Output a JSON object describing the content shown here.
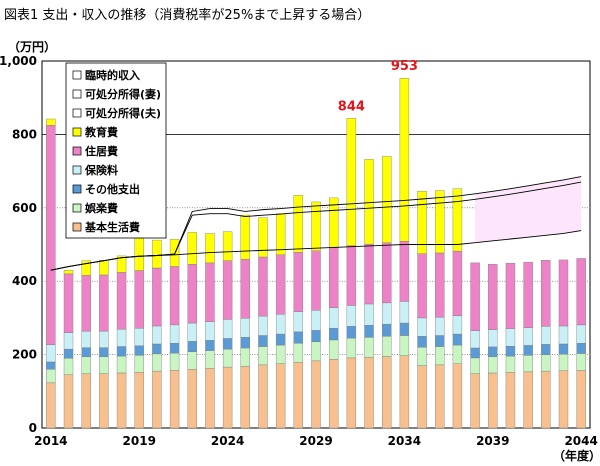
{
  "title": "図表1 支出・収入の推移（消費税率が25%まで上昇する場合）",
  "chart_data": {
    "type": "bar",
    "stacked": true,
    "ylabel": "（万円）",
    "xlabel": "（年度）",
    "ylim": [
      0,
      1000
    ],
    "yticks": [
      "0",
      "200",
      "400",
      "600",
      "800",
      "1,000"
    ],
    "ytick_values": [
      0,
      200,
      400,
      600,
      800,
      1000
    ],
    "years": [
      2014,
      2015,
      2016,
      2017,
      2018,
      2019,
      2020,
      2021,
      2022,
      2023,
      2024,
      2025,
      2026,
      2027,
      2028,
      2029,
      2030,
      2031,
      2032,
      2033,
      2034,
      2035,
      2036,
      2037,
      2038,
      2039,
      2040,
      2041,
      2042,
      2043,
      2044
    ],
    "xtick_labels": [
      "2014",
      "2019",
      "2024",
      "2029",
      "2034",
      "2039",
      "2044"
    ],
    "xtick_years": [
      2014,
      2019,
      2024,
      2029,
      2034,
      2039,
      2044
    ],
    "legend": [
      {
        "key": "rinji",
        "label": "臨時的収入",
        "color": "#ffffff",
        "kind": "line"
      },
      {
        "key": "disp_wife",
        "label": "可処分所得(妻)",
        "color": "#ffffff",
        "kind": "line"
      },
      {
        "key": "disp_husband",
        "label": "可処分所得(夫)",
        "color": "#ffffff",
        "kind": "line"
      },
      {
        "key": "education",
        "label": "教育費",
        "color": "#ffff00",
        "kind": "bar"
      },
      {
        "key": "housing",
        "label": "住居費",
        "color": "#ee82c6",
        "kind": "bar"
      },
      {
        "key": "insurance",
        "label": "保険料",
        "color": "#c9f0f7",
        "kind": "bar"
      },
      {
        "key": "other",
        "label": "その他支出",
        "color": "#5b9bd5",
        "kind": "bar"
      },
      {
        "key": "entertainment",
        "label": "娯楽費",
        "color": "#c9f5c2",
        "kind": "bar"
      },
      {
        "key": "basic",
        "label": "基本生活費",
        "color": "#f8c08e",
        "kind": "bar"
      }
    ],
    "series": [
      {
        "name": "基本生活費",
        "key": "basic",
        "values": [
          123,
          145,
          148,
          148,
          150,
          152,
          155,
          157,
          160,
          163,
          166,
          168,
          172,
          175,
          179,
          183,
          187,
          191,
          193,
          195,
          197,
          170,
          172,
          175,
          148,
          150,
          152,
          153,
          155,
          156,
          157
        ]
      },
      {
        "name": "娯楽費",
        "key": "entertainment",
        "values": [
          37,
          45,
          46,
          46,
          46,
          46,
          47,
          47,
          48,
          48,
          49,
          50,
          50,
          51,
          52,
          52,
          53,
          54,
          54,
          55,
          55,
          50,
          50,
          51,
          43,
          44,
          44,
          45,
          45,
          45,
          46
        ]
      },
      {
        "name": "その他支出",
        "key": "other",
        "values": [
          20,
          25,
          25,
          25,
          26,
          26,
          27,
          27,
          28,
          28,
          29,
          29,
          30,
          30,
          31,
          31,
          32,
          32,
          33,
          33,
          34,
          30,
          30,
          30,
          27,
          27,
          27,
          27,
          28,
          28,
          28
        ]
      },
      {
        "name": "保険料",
        "key": "insurance",
        "values": [
          47,
          45,
          45,
          45,
          47,
          48,
          49,
          50,
          50,
          51,
          52,
          52,
          53,
          54,
          55,
          55,
          56,
          57,
          58,
          58,
          59,
          50,
          50,
          50,
          47,
          47,
          48,
          48,
          49,
          49,
          50
        ]
      },
      {
        "name": "住居費",
        "key": "housing",
        "values": [
          598,
          160,
          152,
          153,
          155,
          157,
          158,
          159,
          160,
          160,
          160,
          161,
          161,
          162,
          162,
          162,
          163,
          163,
          163,
          164,
          164,
          175,
          175,
          176,
          185,
          178,
          178,
          179,
          180,
          180,
          181
        ]
      },
      {
        "name": "教育費",
        "key": "education",
        "values": [
          17,
          10,
          40,
          40,
          45,
          88,
          76,
          74,
          87,
          80,
          79,
          120,
          107,
          112,
          155,
          133,
          136,
          347,
          231,
          235,
          444,
          170,
          170,
          170,
          0,
          0,
          0,
          0,
          0,
          0,
          0
        ]
      }
    ],
    "income_lines": {
      "disp_husband": [
        430,
        440,
        448,
        456,
        464,
        468,
        470,
        472,
        475,
        478,
        480,
        482,
        484,
        486,
        488,
        490,
        492,
        494,
        496,
        498,
        500,
        500,
        500,
        500,
        505,
        510,
        515,
        520,
        525,
        530,
        538
      ],
      "disp_total": [
        430,
        440,
        448,
        456,
        464,
        468,
        470,
        474,
        590,
        598,
        598,
        590,
        595,
        598,
        602,
        605,
        608,
        611,
        614,
        617,
        620,
        624,
        628,
        632,
        638,
        645,
        652,
        660,
        668,
        676,
        685
      ],
      "rinji": [
        430,
        440,
        448,
        456,
        464,
        468,
        470,
        474,
        580,
        584,
        584,
        576,
        580,
        583,
        587,
        590,
        593,
        596,
        599,
        602,
        605,
        609,
        613,
        617,
        623,
        630,
        637,
        645,
        653,
        661,
        670
      ]
    },
    "shaded_wife_from_year": 2038,
    "annotations": [
      {
        "year": 2031,
        "text": "844",
        "value": 844
      },
      {
        "year": 2034,
        "text": "953",
        "value": 953
      }
    ],
    "reference_line": 800,
    "grid": true,
    "legend_position": "top-left"
  }
}
